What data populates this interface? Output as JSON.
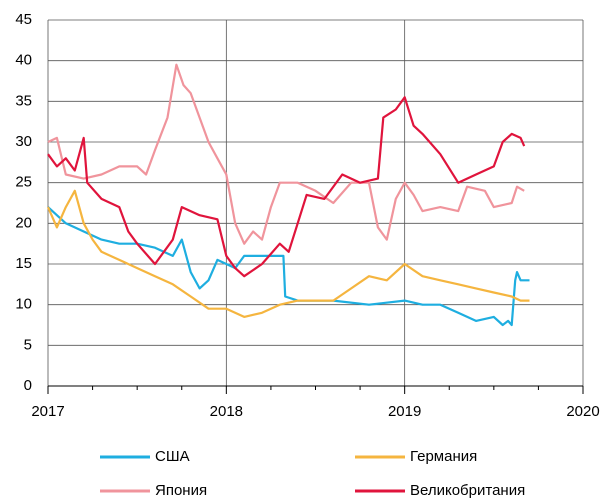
{
  "chart_data": {
    "type": "line",
    "xlim": [
      2017,
      2020
    ],
    "xticks": [
      2017,
      2018,
      2019,
      2020
    ],
    "ylim": [
      0,
      45
    ],
    "yticks": [
      0,
      5,
      10,
      15,
      20,
      25,
      30,
      35,
      40,
      45
    ],
    "grid": true,
    "series": [
      {
        "name": "США",
        "color": "#1eaee0",
        "x": [
          2017.0,
          2017.1,
          2017.2,
          2017.3,
          2017.4,
          2017.5,
          2017.6,
          2017.7,
          2017.75,
          2017.8,
          2017.85,
          2017.9,
          2017.95,
          2018.0,
          2018.05,
          2018.1,
          2018.2,
          2018.32,
          2018.33,
          2018.4,
          2018.6,
          2018.8,
          2019.0,
          2019.1,
          2019.2,
          2019.3,
          2019.4,
          2019.5,
          2019.55,
          2019.58,
          2019.6,
          2019.62,
          2019.63,
          2019.65,
          2019.7
        ],
        "values": [
          22,
          20,
          19,
          18,
          17.5,
          17.5,
          17,
          16,
          18,
          14,
          12,
          13,
          15.5,
          15,
          14.5,
          16,
          16,
          16,
          11,
          10.5,
          10.5,
          10,
          10.5,
          10,
          10,
          9,
          8,
          8.5,
          7.5,
          8,
          7.5,
          13,
          14,
          13,
          13
        ]
      },
      {
        "name": "Германия",
        "color": "#f5b53f",
        "x": [
          2017.0,
          2017.05,
          2017.1,
          2017.15,
          2017.2,
          2017.25,
          2017.3,
          2017.4,
          2017.5,
          2017.6,
          2017.7,
          2017.8,
          2017.9,
          2018.0,
          2018.1,
          2018.2,
          2018.3,
          2018.4,
          2018.5,
          2018.6,
          2018.7,
          2018.8,
          2018.9,
          2019.0,
          2019.1,
          2019.2,
          2019.3,
          2019.4,
          2019.5,
          2019.6,
          2019.65,
          2019.7
        ],
        "values": [
          22,
          19.5,
          22,
          24,
          20,
          18,
          16.5,
          15.5,
          14.5,
          13.5,
          12.5,
          11,
          9.5,
          9.5,
          8.5,
          9,
          10,
          10.5,
          10.5,
          10.5,
          12,
          13.5,
          13,
          15,
          13.5,
          13,
          12.5,
          12,
          11.5,
          11,
          10.5,
          10.5
        ]
      },
      {
        "name": "Япония",
        "color": "#f0949c",
        "x": [
          2017.0,
          2017.05,
          2017.1,
          2017.2,
          2017.3,
          2017.4,
          2017.5,
          2017.55,
          2017.6,
          2017.67,
          2017.72,
          2017.76,
          2017.8,
          2017.85,
          2017.9,
          2017.95,
          2018.0,
          2018.05,
          2018.1,
          2018.15,
          2018.2,
          2018.25,
          2018.3,
          2018.4,
          2018.5,
          2018.6,
          2018.7,
          2018.8,
          2018.85,
          2018.9,
          2018.95,
          2019.0,
          2019.05,
          2019.1,
          2019.2,
          2019.3,
          2019.35,
          2019.45,
          2019.5,
          2019.6,
          2019.63,
          2019.67
        ],
        "values": [
          30,
          30.5,
          26,
          25.5,
          26,
          27,
          27,
          26,
          29,
          33,
          39.5,
          37,
          36,
          33,
          30,
          28,
          26,
          20,
          17.5,
          19,
          18,
          22,
          25,
          25,
          24,
          22.5,
          25,
          25,
          19.5,
          18,
          23,
          25,
          23.5,
          21.5,
          22,
          21.5,
          24.5,
          24,
          22,
          22.5,
          24.5,
          24
        ]
      },
      {
        "name": "Великобритания",
        "color": "#e0143c",
        "x": [
          2017.0,
          2017.05,
          2017.1,
          2017.15,
          2017.2,
          2017.22,
          2017.3,
          2017.4,
          2017.45,
          2017.5,
          2017.6,
          2017.65,
          2017.7,
          2017.75,
          2017.85,
          2017.95,
          2018.0,
          2018.05,
          2018.1,
          2018.2,
          2018.3,
          2018.35,
          2018.4,
          2018.45,
          2018.55,
          2018.65,
          2018.75,
          2018.85,
          2018.88,
          2018.95,
          2019.0,
          2019.05,
          2019.1,
          2019.2,
          2019.3,
          2019.4,
          2019.5,
          2019.55,
          2019.6,
          2019.65,
          2019.67
        ],
        "values": [
          28.5,
          27,
          28,
          26.5,
          30.5,
          25,
          23,
          22,
          19,
          17.5,
          15,
          16.5,
          18,
          22,
          21,
          20.5,
          16,
          14.5,
          13.5,
          15,
          17.5,
          16.5,
          20,
          23.5,
          23,
          26,
          25,
          25.5,
          33,
          34,
          35.5,
          32,
          31,
          28.5,
          25,
          26,
          27,
          30,
          31,
          30.5,
          29.5
        ]
      }
    ]
  }
}
